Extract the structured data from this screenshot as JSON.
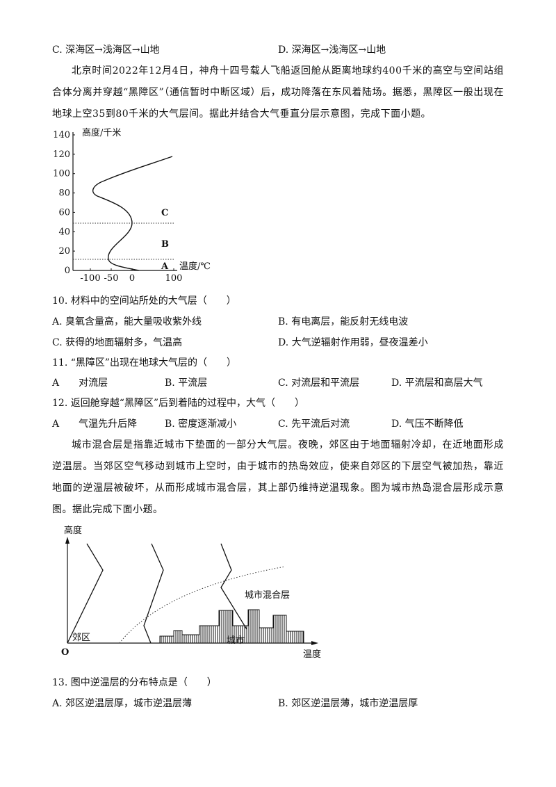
{
  "previous_options": [
    "C. 深海区→浅海区→山地",
    "D. 深海区→浅海区→山地"
  ],
  "passage_1": "北京时间2022年12月4日，神舟十四号载人飞船返回舱从距离地球约400千米的高空与空间站组合体分离并穿越“黑障区”（通信暂时中断区域）后，成功降落在东风着陆场。据悉，黑障区一般出现在地球上空35到80千米的大气层间。据此并结合大气垂直分层示意图，完成下面小题。",
  "figure_1": {
    "y_axis_label": "高度/千米",
    "x_axis_label": "温度/℃",
    "yticks": [
      0,
      20,
      40,
      60,
      80,
      100,
      120,
      140
    ],
    "xticks": [
      -100,
      -50,
      0,
      100
    ],
    "layer_labels": [
      "C",
      "B",
      "A"
    ]
  },
  "questions_1": [
    {
      "stem": "10. 材料中的空间站所处的大气层（　　）",
      "options": [
        "A. 臭氧含量高，能大量吸收紫外线",
        "B. 有电离层，能反射无线电波",
        "C. 获得的地面辐射多，气温高",
        "D. 大气逆辐射作用弱，昼夜温差小"
      ]
    },
    {
      "stem": "11. “黑障区”出现在地球大气层的（　　）",
      "options": [
        "A　　对流层",
        "B. 平流层",
        "C. 对流层和平流层",
        "D. 平流层和高层大气"
      ]
    },
    {
      "stem": "12. 返回舱穿越“黑障区”后到着陆的过程中，大气（　　）",
      "options": [
        "A　　气温先升后降",
        "B. 密度逐渐减小",
        "C. 先平流后对流",
        "D. 气压不断降低"
      ]
    }
  ],
  "passage_2": "城市混合层是指靠近城市下垫面的一部分大气层。夜晚，郊区由于地面辐射冷却，在近地面形成逆温层。当郊区空气移动到城市上空时，由于城市的热岛效应，使来自郊区的下层空气被加热，靠近地面的逆温层被破坏，从而形成城市混合层，其上部仍维持逆温现象。图为城市热岛混合层形成示意图。据此完成下面小题。",
  "figure_2": {
    "y_axis_label": "高度",
    "origin_label": "O",
    "x_axis_label": "温度",
    "suburb_label": "郊区",
    "city_label": "城市",
    "mixed_layer_label": "城市混合层"
  },
  "questions_2": [
    {
      "stem": "13. 图中逆温层的分布特点是（　　）",
      "options": [
        "A. 郊区逆温层厚，城市逆温层薄",
        "B. 郊区逆温层薄，城市逆温层厚"
      ]
    }
  ]
}
